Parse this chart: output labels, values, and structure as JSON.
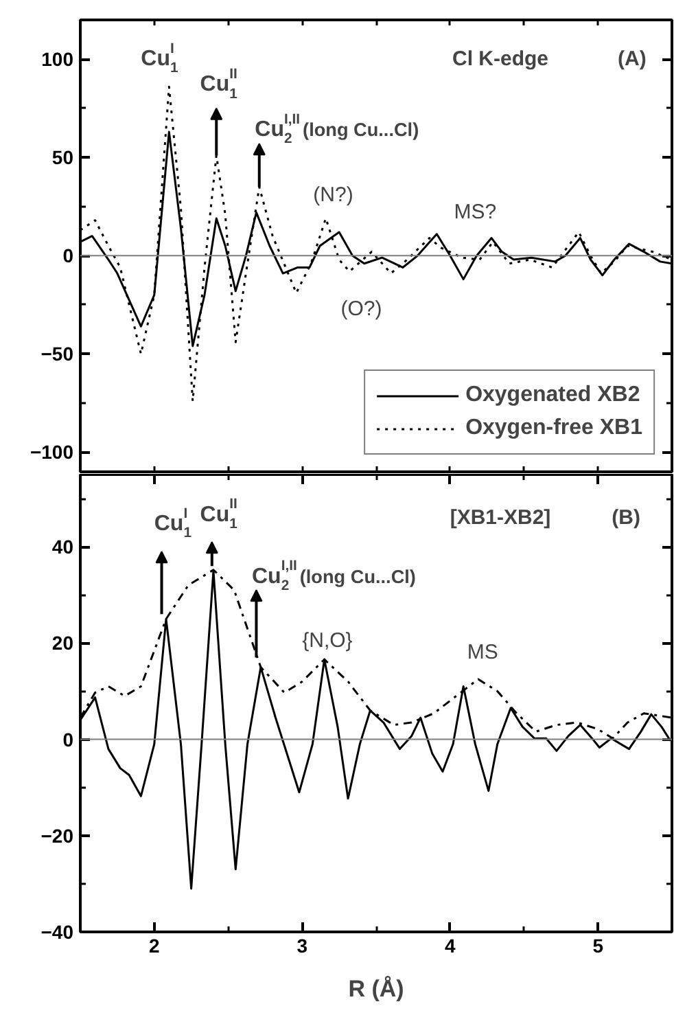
{
  "chart_data": [
    {
      "type": "line",
      "xlim": [
        1.5,
        5.5
      ],
      "ylim": [
        -110,
        120
      ],
      "xticks": [
        {
          "value": 2,
          "label": null
        },
        {
          "value": 2.5,
          "label": null
        },
        {
          "value": 3,
          "label": null
        },
        {
          "value": 3.5,
          "label": null
        },
        {
          "value": 4,
          "label": null
        },
        {
          "value": 4.5,
          "label": null
        },
        {
          "value": 5,
          "label": null
        }
      ],
      "yticks": [
        -100,
        {
          "value": -75,
          "label": null
        },
        -50,
        {
          "value": -25,
          "label": null
        },
        0,
        {
          "value": 25,
          "label": null
        },
        50,
        {
          "value": 75,
          "label": null
        },
        100
      ],
      "tick_labels": "y",
      "grid": false,
      "legend": "bottom right",
      "series": [
        {
          "name": "Oxygenated XB2",
          "color": "#000000",
          "line_style": "solid",
          "x": [
            1.5,
            1.58,
            1.69,
            1.75,
            1.91,
            2.0,
            2.1,
            2.18,
            2.26,
            2.34,
            2.42,
            2.48,
            2.55,
            2.62,
            2.69,
            2.78,
            2.87,
            2.97,
            3.05,
            3.12,
            3.25,
            3.34,
            3.42,
            3.54,
            3.68,
            3.78,
            3.91,
            4.0,
            4.09,
            4.18,
            4.28,
            4.35,
            4.43,
            4.55,
            4.71,
            4.78,
            4.88,
            4.95,
            5.03,
            5.11,
            5.21,
            5.31,
            5.42,
            5.5
          ],
          "values": [
            7,
            10,
            -2,
            -9,
            -36,
            -20,
            63,
            14,
            -46,
            -20,
            19,
            5,
            -18,
            0,
            22,
            5,
            -9,
            -6,
            -6,
            5,
            12,
            0,
            -4,
            -1,
            -6,
            0,
            11,
            0,
            -12,
            0,
            9,
            2,
            -2,
            -1,
            -3,
            0,
            9,
            -2,
            -10,
            -2,
            6,
            2,
            -3,
            -4
          ]
        },
        {
          "name": "Oxygen-free XB1",
          "color": "#000000",
          "line_style": "dotted",
          "x": [
            1.5,
            1.6,
            1.69,
            1.77,
            1.91,
            2.0,
            2.1,
            2.18,
            2.26,
            2.34,
            2.42,
            2.48,
            2.55,
            2.62,
            2.71,
            2.8,
            2.96,
            3.06,
            3.16,
            3.25,
            3.32,
            3.47,
            3.6,
            3.71,
            3.86,
            3.94,
            4.08,
            4.2,
            4.29,
            4.4,
            4.54,
            4.69,
            4.87,
            4.95,
            5.02,
            5.11,
            5.2,
            5.37,
            5.5
          ],
          "values": [
            13,
            18,
            5,
            -6,
            -50,
            -20,
            86,
            24,
            -74,
            -6,
            51,
            21,
            -44,
            -9,
            35,
            10,
            -19,
            -4,
            19,
            -2,
            -8,
            2,
            -9,
            -2,
            9,
            4,
            -1,
            -2,
            7,
            -4,
            -2,
            -6,
            12,
            0,
            -9,
            -3,
            5,
            2,
            -2
          ]
        }
      ],
      "ref_lines": [
        {
          "axis": "y",
          "value": 0,
          "color": "#808080",
          "line_style": "solid"
        }
      ],
      "annotations": [
        "Cu$^{I}$$_{1}$",
        {
          "text": "Cu$^{II}$$_{1}$",
          "x": 2.42,
          "y": 51
        },
        {
          "text": "Cu$^{I,II}$$_{2}$ (long Cu...Cl)",
          "x": 2.71,
          "y": 35
        },
        "(N?)",
        "(O?)",
        "MS?",
        "Cl K-edge",
        "(A)"
      ]
    },
    {
      "type": "line",
      "xlim": [
        1.5,
        5.5
      ],
      "ylim": [
        -40,
        55
      ],
      "xlabel": "R (Å)",
      "xticks": [
        2,
        {
          "value": 2.5,
          "label": null
        },
        3,
        {
          "value": 3.5,
          "label": null
        },
        4,
        {
          "value": 4.5,
          "label": null
        },
        5
      ],
      "yticks": [
        -40,
        {
          "value": -30,
          "label": null
        },
        -20,
        {
          "value": -10,
          "label": null
        },
        0,
        {
          "value": 10,
          "label": null
        },
        20,
        {
          "value": 30,
          "label": null
        },
        40,
        {
          "value": 50,
          "label": null
        }
      ],
      "grid": false,
      "series": [
        {
          "color": "#000000",
          "line_style": "solid",
          "x": [
            1.5,
            1.6,
            1.69,
            1.77,
            1.83,
            1.91,
            2.0,
            2.08,
            2.18,
            2.25,
            2.32,
            2.4,
            2.48,
            2.55,
            2.63,
            2.72,
            2.82,
            2.98,
            3.07,
            3.15,
            3.24,
            3.31,
            3.39,
            3.46,
            3.55,
            3.66,
            3.74,
            3.8,
            3.88,
            3.95,
            4.02,
            4.09,
            4.17,
            4.26,
            4.32,
            4.41,
            4.49,
            4.57,
            4.65,
            4.72,
            4.8,
            4.88,
            4.96,
            5.01,
            5.09,
            5.21,
            5.29,
            5.36,
            5.43,
            5.49
          ],
          "values": [
            4,
            8.7,
            -2,
            -6,
            -7.4,
            -11.8,
            -1,
            25,
            -1,
            -31,
            -1,
            35,
            -1,
            -27,
            -1,
            15,
            4.5,
            -11,
            -1,
            16.6,
            2.6,
            -12.3,
            -1,
            6,
            3.5,
            -2,
            0.7,
            4.5,
            -3,
            -6.7,
            -1,
            11,
            -1,
            -10.7,
            -1,
            6.5,
            2.6,
            0.2,
            0.2,
            -2.4,
            0.7,
            3,
            0.2,
            -1.7,
            0.2,
            -2,
            1.6,
            5.2,
            2.6,
            -0.3
          ]
        },
        {
          "color": "#000000",
          "line_style": "dashdot",
          "x": [
            1.5,
            1.6,
            1.69,
            1.8,
            1.91,
            2.08,
            2.23,
            2.4,
            2.54,
            2.72,
            2.88,
            3.0,
            3.15,
            3.31,
            3.46,
            3.62,
            3.74,
            3.89,
            4.05,
            4.19,
            4.32,
            4.45,
            4.58,
            4.72,
            4.86,
            5.0,
            5.1,
            5.2,
            5.31,
            5.5
          ],
          "values": [
            4.5,
            9.7,
            11,
            9,
            11,
            25,
            32,
            35.2,
            31,
            15,
            9.7,
            12,
            16.6,
            12,
            6,
            3,
            3.5,
            5.4,
            9.2,
            12.5,
            10,
            5.4,
            1.6,
            3,
            3.5,
            2.1,
            0.2,
            3.5,
            5.4,
            4.5
          ]
        }
      ],
      "ref_lines": [
        {
          "axis": "y",
          "value": 0,
          "color": "#808080",
          "line_style": "solid"
        }
      ],
      "annotations": [
        {
          "text": "Cu$^{I}$$_{1}$",
          "x": 2.05,
          "y": 26
        },
        {
          "text": "Cu$^{II}$$_{1}$",
          "x": 2.39,
          "y": 36
        },
        {
          "text": "Cu$^{I,II}$$_{2}$(long Cu...Cl)",
          "x": 2.69,
          "y": 17
        },
        "{N,O}",
        "MS",
        "[XB1-XB2]",
        "(B)"
      ]
    }
  ]
}
